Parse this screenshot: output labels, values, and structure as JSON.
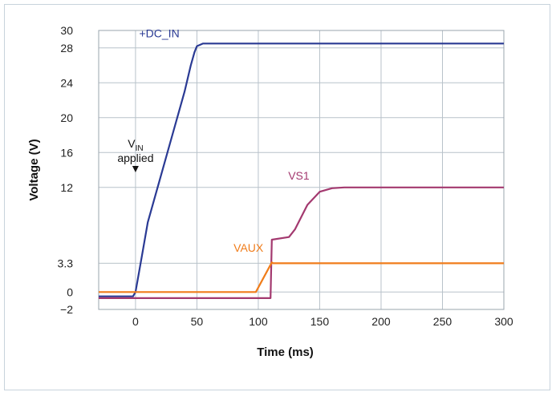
{
  "chart_data": {
    "type": "line",
    "title": "",
    "xlabel": "Time (ms)",
    "ylabel": "Voltage (V)",
    "xlim": [
      -30,
      300
    ],
    "ylim": [
      -2,
      30
    ],
    "x_ticks": [
      0,
      50,
      100,
      150,
      200,
      250,
      300
    ],
    "y_ticks": [
      -2,
      0,
      3.3,
      12,
      16,
      20,
      24,
      28,
      30
    ],
    "y_tick_labels": [
      "−2",
      "0",
      "3.3",
      "12",
      "16",
      "20",
      "24",
      "28",
      "30"
    ],
    "grid": true,
    "series": [
      {
        "name": "+DC_IN",
        "color": "#2a3a94",
        "x": [
          -30,
          -2,
          0,
          5,
          10,
          20,
          30,
          40,
          45,
          48,
          50,
          55,
          60,
          100,
          150,
          200,
          250,
          300
        ],
        "y": [
          -0.5,
          -0.5,
          0,
          4,
          8,
          13,
          18,
          23,
          26,
          27.5,
          28.2,
          28.5,
          28.5,
          28.5,
          28.5,
          28.5,
          28.5,
          28.5
        ]
      },
      {
        "name": "VS1",
        "color": "#a3396f",
        "x": [
          -30,
          0,
          50,
          95,
          110,
          111,
          125,
          130,
          140,
          150,
          160,
          170,
          200,
          250,
          300
        ],
        "y": [
          -0.7,
          -0.7,
          -0.7,
          -0.7,
          -0.7,
          6.0,
          6.3,
          7.2,
          10.0,
          11.5,
          11.9,
          12.0,
          12.0,
          12.0,
          12.0
        ]
      },
      {
        "name": "VAUX",
        "color": "#f07c1a",
        "x": [
          -30,
          0,
          98,
          111,
          112,
          150,
          200,
          250,
          300
        ],
        "y": [
          0,
          0,
          0,
          3.4,
          3.3,
          3.3,
          3.3,
          3.3,
          3.3
        ]
      }
    ],
    "annotations": [
      {
        "text_main": "V",
        "text_sub": "IN",
        "text_line2": "applied",
        "x": 0,
        "arrow": "down"
      }
    ]
  }
}
